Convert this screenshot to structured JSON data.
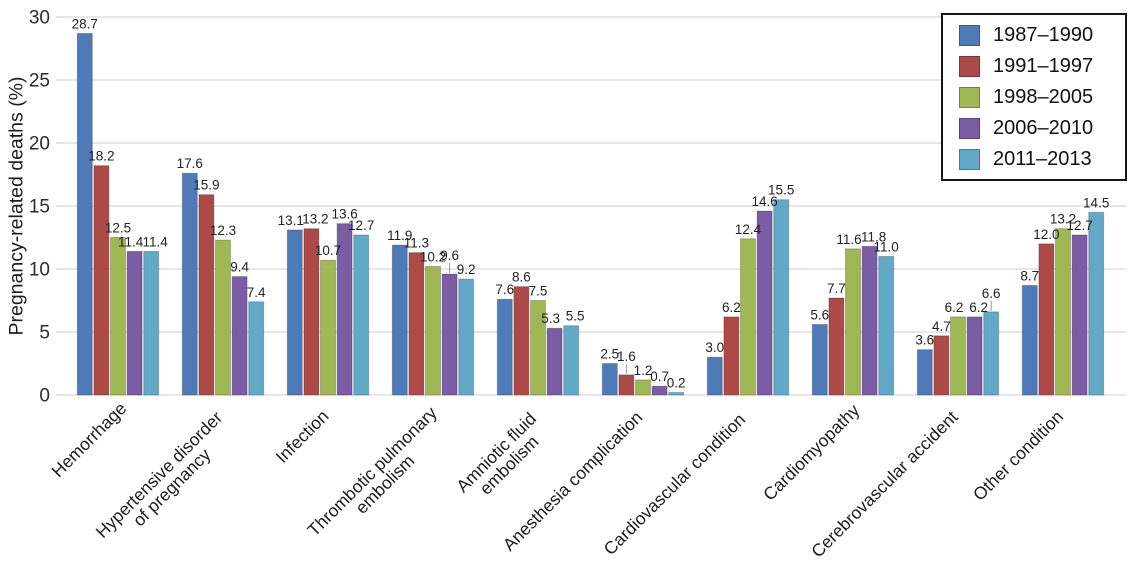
{
  "figure": {
    "background": "#ffffff"
  },
  "chart_data": {
    "type": "bar",
    "title": "",
    "xlabel": "",
    "ylabel": "Pregnancy-related deaths (%)",
    "ylim": [
      0,
      30
    ],
    "yticks": [
      0,
      5,
      10,
      15,
      20,
      25,
      30
    ],
    "grid": true,
    "gridline_color": "#cfcfcf",
    "data_labels": true,
    "data_label_format": "one-decimal",
    "legend_position": "top-right",
    "categories": [
      "Hemorrhage",
      "Hypertensive disorder\nof pregnancy",
      "Infection",
      "Thrombotic pulmonary\nembolism",
      "Amniotic fluid\nembolism",
      "Anesthesia complication",
      "Cardiovascular condition",
      "Cardiomyopathy",
      "Cerebrovascular accident",
      "Other condition"
    ],
    "series": [
      {
        "name": "1987–1990",
        "color": "#4f7ab8",
        "values": [
          28.7,
          17.6,
          13.1,
          11.9,
          7.6,
          2.5,
          3.0,
          5.6,
          3.6,
          8.7
        ]
      },
      {
        "name": "1991–1997",
        "color": "#ad4a47",
        "values": [
          18.2,
          15.9,
          13.2,
          11.3,
          8.6,
          1.6,
          6.2,
          7.7,
          4.7,
          12.0
        ]
      },
      {
        "name": "1998–2005",
        "color": "#9fb754",
        "values": [
          12.5,
          12.3,
          10.7,
          10.2,
          7.5,
          1.2,
          12.4,
          11.6,
          6.2,
          13.2
        ]
      },
      {
        "name": "2006–2010",
        "color": "#7a5da5",
        "values": [
          11.4,
          9.4,
          13.6,
          9.6,
          5.3,
          0.7,
          14.6,
          11.8,
          6.2,
          12.7
        ]
      },
      {
        "name": "2011–2013",
        "color": "#62a9c8",
        "values": [
          11.4,
          7.4,
          12.7,
          9.2,
          5.5,
          0.2,
          15.5,
          11.0,
          6.6,
          14.5
        ]
      }
    ]
  }
}
